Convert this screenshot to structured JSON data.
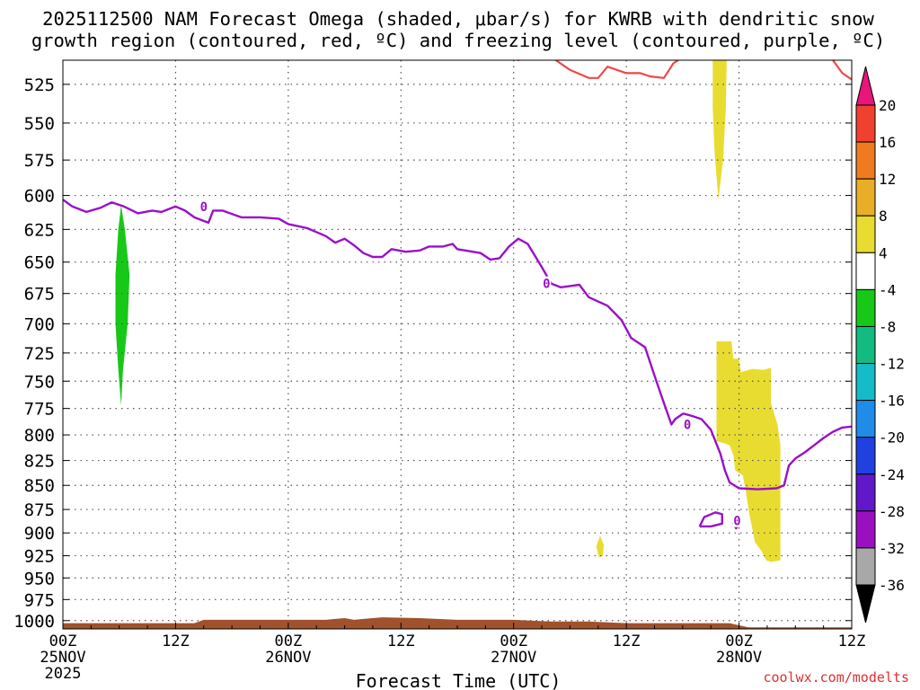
{
  "chart_data": {
    "type": "heatmap",
    "title_line1": "2025112500 NAM Forecast Omega (shaded, μbar/s) for KWRB with dendritic snow",
    "title_line2": "growth region (contoured, red, ºC) and freezing level (contoured, purple, ºC)",
    "xlabel": "Forecast Time (UTC)",
    "credit": "coolwx.com/modelts",
    "grid": true,
    "xlim": [
      0,
      84
    ],
    "ylim": [
      1010,
      510
    ],
    "y_scale": "log-pressure",
    "x_ticks": [
      {
        "x": 0,
        "line1": "00Z",
        "line2": "25NOV",
        "line3": "2025"
      },
      {
        "x": 12,
        "line1": "12Z",
        "line2": "",
        "line3": ""
      },
      {
        "x": 24,
        "line1": "00Z",
        "line2": "26NOV",
        "line3": ""
      },
      {
        "x": 36,
        "line1": "12Z",
        "line2": "",
        "line3": ""
      },
      {
        "x": 48,
        "line1": "00Z",
        "line2": "27NOV",
        "line3": ""
      },
      {
        "x": 60,
        "line1": "12Z",
        "line2": "",
        "line3": ""
      },
      {
        "x": 72,
        "line1": "00Z",
        "line2": "28NOV",
        "line3": ""
      },
      {
        "x": 84,
        "line1": "12Z",
        "line2": "",
        "line3": ""
      }
    ],
    "y_ticks": [
      "525",
      "550",
      "575",
      "600",
      "625",
      "650",
      "675",
      "700",
      "725",
      "750",
      "775",
      "800",
      "825",
      "850",
      "875",
      "900",
      "925",
      "950",
      "975",
      "1000"
    ],
    "colorbar": {
      "labels": [
        "20",
        "16",
        "12",
        "8",
        "4",
        "-4",
        "-8",
        "-12",
        "-16",
        "-20",
        "-24",
        "-28",
        "-32",
        "-36"
      ],
      "bins": [
        {
          "lo": 16,
          "hi": 20,
          "color": "#f04030"
        },
        {
          "lo": 12,
          "hi": 16,
          "color": "#f07a20"
        },
        {
          "lo": 8,
          "hi": 12,
          "color": "#e8ae28"
        },
        {
          "lo": 4,
          "hi": 8,
          "color": "#e8dc30"
        },
        {
          "lo": -4,
          "hi": 4,
          "color": "#ffffff"
        },
        {
          "lo": -8,
          "hi": -4,
          "color": "#18c818"
        },
        {
          "lo": -12,
          "hi": -8,
          "color": "#12bc80"
        },
        {
          "lo": -16,
          "hi": -12,
          "color": "#14bcc8"
        },
        {
          "lo": -20,
          "hi": -16,
          "color": "#1e8ce8"
        },
        {
          "lo": -24,
          "hi": -20,
          "color": "#2040e0"
        },
        {
          "lo": -28,
          "hi": -24,
          "color": "#6018c8"
        },
        {
          "lo": -32,
          "hi": -28,
          "color": "#9a10c0"
        },
        {
          "lo": -36,
          "hi": -32,
          "color": "#a8a8a8"
        }
      ],
      "top_arrow_color": "#e8157a",
      "bottom_arrow_color": "#000000"
    },
    "colors": {
      "freezing_level": "#9a10c8",
      "dgz": "#f04848",
      "terrain": "#a0522d"
    },
    "contour_labels": [
      {
        "text": "0",
        "x": 15,
        "p": 608
      },
      {
        "text": "0",
        "x": 51.5,
        "p": 667
      },
      {
        "text": "0",
        "x": 66.5,
        "p": 790
      },
      {
        "text": "0",
        "x": 71.8,
        "p": 887
      }
    ],
    "freezing_level": [
      [
        0,
        603
      ],
      [
        1,
        608
      ],
      [
        2.5,
        612
      ],
      [
        4,
        609
      ],
      [
        5.2,
        605
      ],
      [
        6.5,
        608
      ],
      [
        8,
        613
      ],
      [
        9.5,
        611
      ],
      [
        10.5,
        612
      ],
      [
        12,
        608
      ],
      [
        13,
        611
      ],
      [
        14,
        616
      ],
      [
        15.5,
        620
      ],
      [
        16,
        611
      ],
      [
        17,
        611
      ],
      [
        19,
        616
      ],
      [
        21,
        616
      ],
      [
        23,
        617
      ],
      [
        24,
        621
      ],
      [
        26,
        624
      ],
      [
        28,
        630
      ],
      [
        29,
        635
      ],
      [
        30,
        632
      ],
      [
        31,
        637
      ],
      [
        32,
        643
      ],
      [
        33,
        646
      ],
      [
        34,
        646
      ],
      [
        35,
        640
      ],
      [
        36.5,
        642
      ],
      [
        38,
        641
      ],
      [
        39,
        638
      ],
      [
        40.5,
        638
      ],
      [
        41.5,
        636
      ],
      [
        42,
        640
      ],
      [
        44.5,
        643
      ],
      [
        45.5,
        648
      ],
      [
        46.5,
        647
      ],
      [
        47.5,
        638
      ],
      [
        48.5,
        632
      ],
      [
        49.5,
        636
      ],
      [
        51,
        654
      ],
      [
        52,
        667
      ],
      [
        53,
        670
      ],
      [
        54,
        669
      ],
      [
        55,
        668
      ],
      [
        56,
        678
      ],
      [
        58,
        685
      ],
      [
        59.5,
        697
      ],
      [
        60.5,
        712
      ],
      [
        62,
        720
      ],
      [
        63,
        745
      ],
      [
        64,
        770
      ],
      [
        64.8,
        790
      ],
      [
        65.2,
        785
      ],
      [
        66,
        780
      ],
      [
        66.2,
        780
      ],
      [
        67,
        782
      ],
      [
        68,
        785
      ],
      [
        69,
        795
      ],
      [
        70,
        818
      ],
      [
        70.5,
        835
      ],
      [
        71,
        847
      ],
      [
        72,
        853
      ],
      [
        74,
        854
      ],
      [
        76,
        853
      ],
      [
        76.8,
        850
      ],
      [
        77,
        842
      ],
      [
        77.3,
        830
      ],
      [
        78,
        823
      ],
      [
        79,
        817
      ],
      [
        80,
        810
      ],
      [
        81,
        803
      ],
      [
        82,
        797
      ],
      [
        83,
        793
      ],
      [
        84,
        792
      ]
    ],
    "freezing_level_islands": [
      [
        [
          67.8,
          893
        ],
        [
          68.3,
          883
        ],
        [
          69.5,
          878
        ],
        [
          70.2,
          880
        ],
        [
          70.2,
          890
        ],
        [
          69,
          893
        ],
        [
          67.8,
          893
        ]
      ],
      [
        [
          71.7,
          885
        ],
        [
          72,
          890
        ],
        [
          71.7,
          895
        ],
        [
          71.4,
          890
        ],
        [
          71.7,
          885
        ]
      ]
    ],
    "dgz_line": [
      [
        47.5,
        507
      ],
      [
        48.5,
        510
      ],
      [
        50,
        507
      ],
      [
        52,
        508
      ],
      [
        54,
        516
      ],
      [
        56,
        521
      ],
      [
        57,
        521
      ],
      [
        58,
        514
      ],
      [
        60,
        518
      ],
      [
        61.5,
        518
      ],
      [
        62.5,
        520
      ],
      [
        64,
        521
      ],
      [
        65,
        512
      ],
      [
        66,
        508
      ],
      [
        67,
        505
      ],
      [
        81,
        505
      ],
      [
        82,
        510
      ],
      [
        83,
        518
      ],
      [
        84,
        522
      ]
    ],
    "shaded_regions": [
      {
        "value": -6,
        "points": [
          [
            6.2,
            607
          ],
          [
            6.6,
            625
          ],
          [
            7.1,
            660
          ],
          [
            6.9,
            700
          ],
          [
            6.4,
            740
          ],
          [
            6.2,
            772
          ],
          [
            5.9,
            740
          ],
          [
            5.6,
            700
          ],
          [
            5.6,
            660
          ],
          [
            5.9,
            625
          ],
          [
            6.2,
            607
          ]
        ]
      },
      {
        "value": 6,
        "points": [
          [
            69.2,
            505
          ],
          [
            70.7,
            505
          ],
          [
            70.6,
            540
          ],
          [
            70.3,
            575
          ],
          [
            69.8,
            603
          ],
          [
            69.4,
            570
          ],
          [
            69.2,
            540
          ],
          [
            69.2,
            505
          ]
        ]
      },
      {
        "value": 6,
        "points": [
          [
            69.6,
            715
          ],
          [
            71.2,
            715
          ],
          [
            71.4,
            730
          ],
          [
            72,
            730
          ],
          [
            72.2,
            742
          ],
          [
            73.4,
            739
          ],
          [
            74.6,
            740
          ],
          [
            75.4,
            738
          ],
          [
            75.4,
            770
          ],
          [
            76.1,
            790
          ],
          [
            76.4,
            810
          ],
          [
            76.4,
            865
          ],
          [
            76.4,
            930
          ],
          [
            75.4,
            932
          ],
          [
            74.9,
            930
          ],
          [
            74.4,
            920
          ],
          [
            73.7,
            910
          ],
          [
            73.1,
            880
          ],
          [
            72.7,
            855
          ],
          [
            72.4,
            840
          ],
          [
            71.6,
            835
          ],
          [
            71.4,
            820
          ],
          [
            71,
            810
          ],
          [
            70.4,
            808
          ],
          [
            69.6,
            806
          ],
          [
            69.6,
            715
          ]
        ]
      },
      {
        "value": 6,
        "points": [
          [
            57.2,
            903
          ],
          [
            57.6,
            913
          ],
          [
            57.5,
            925
          ],
          [
            57.1,
            927
          ],
          [
            56.8,
            915
          ],
          [
            57.2,
            903
          ]
        ]
      }
    ],
    "terrain_surface": [
      [
        0,
        1003
      ],
      [
        14,
        1003
      ],
      [
        15,
        999
      ],
      [
        28,
        999
      ],
      [
        29,
        998
      ],
      [
        30,
        997
      ],
      [
        31,
        999
      ],
      [
        32,
        998
      ],
      [
        34,
        996
      ],
      [
        38,
        997
      ],
      [
        42,
        999
      ],
      [
        48,
        999
      ],
      [
        52,
        1001
      ],
      [
        56,
        1001
      ],
      [
        60,
        1003
      ],
      [
        64,
        1003
      ],
      [
        71,
        1003
      ],
      [
        73,
        1008
      ],
      [
        84,
        1008
      ]
    ]
  }
}
